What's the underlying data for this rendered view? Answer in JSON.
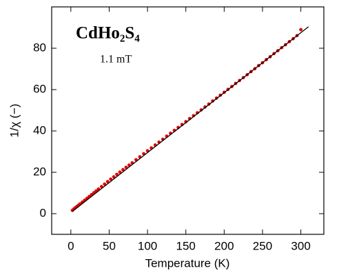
{
  "chart_data": {
    "type": "scatter",
    "title": "CdHo₂S₄",
    "annotation": "1.1 mT",
    "xlabel": "Temperature (K)",
    "ylabel": "1/χ (−)",
    "xlim": [
      -25,
      330
    ],
    "ylim": [
      -10,
      100
    ],
    "xticks": [
      0,
      50,
      100,
      150,
      200,
      250,
      300
    ],
    "yticks": [
      0,
      20,
      40,
      60,
      80
    ],
    "series": [
      {
        "color": "#e00000",
        "x": [
          2,
          4,
          6,
          8,
          10,
          12,
          15,
          18,
          21,
          24,
          27,
          30,
          33,
          36,
          40,
          44,
          48,
          52,
          56,
          60,
          64,
          68,
          72,
          76,
          80,
          85,
          90,
          95,
          100,
          105,
          110,
          115,
          120,
          125,
          130,
          135,
          140,
          145,
          150,
          155,
          160,
          165,
          170,
          175,
          180,
          185,
          190,
          195,
          200,
          205,
          210,
          215,
          220,
          225,
          230,
          235,
          240,
          245,
          250,
          255,
          260,
          265,
          270,
          275,
          280,
          285,
          290,
          295,
          300
        ],
        "values": [
          1.6,
          2.3,
          2.9,
          3.5,
          4.1,
          4.7,
          5.6,
          6.5,
          7.4,
          8.3,
          9.2,
          10.1,
          11.0,
          11.9,
          13.1,
          14.3,
          15.5,
          16.7,
          17.8,
          19.0,
          20.1,
          21.3,
          22.4,
          23.5,
          24.6,
          26.1,
          27.5,
          29.0,
          30.4,
          31.8,
          33.2,
          34.6,
          36.0,
          37.5,
          38.9,
          40.3,
          41.7,
          43.1,
          44.5,
          46.0,
          47.4,
          48.8,
          50.2,
          51.6,
          53.0,
          54.5,
          55.9,
          57.3,
          58.7,
          60.1,
          61.5,
          63.0,
          64.4,
          65.8,
          67.2,
          68.7,
          70.1,
          71.6,
          73.0,
          74.5,
          75.9,
          77.4,
          78.8,
          80.3,
          81.7,
          83.2,
          84.6,
          86.1,
          89.0
        ]
      }
    ],
    "fit": {
      "color": "#000000",
      "x": [
        2,
        310
      ],
      "values": [
        1.1,
        90.4
      ]
    }
  }
}
